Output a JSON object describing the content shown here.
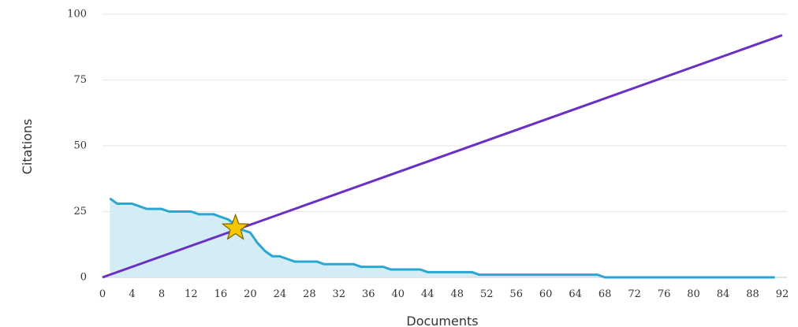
{
  "chart_data": {
    "type": "line",
    "xlabel": "Documents",
    "ylabel": "Citations",
    "xlim": [
      0,
      92
    ],
    "ylim": [
      0,
      100
    ],
    "x_ticks": [
      0,
      4,
      8,
      12,
      16,
      20,
      24,
      28,
      32,
      36,
      40,
      44,
      48,
      52,
      56,
      60,
      64,
      68,
      72,
      76,
      80,
      84,
      88,
      92
    ],
    "y_ticks": [
      0,
      25,
      50,
      75,
      100
    ],
    "grid": true,
    "legend": "none",
    "series": [
      {
        "kind": "area",
        "color": "#2aa7d1",
        "fill": "#d3ecf5",
        "points": [
          [
            1,
            30
          ],
          [
            2,
            28
          ],
          [
            3,
            28
          ],
          [
            4,
            28
          ],
          [
            5,
            27
          ],
          [
            6,
            26
          ],
          [
            7,
            26
          ],
          [
            8,
            26
          ],
          [
            9,
            25
          ],
          [
            10,
            25
          ],
          [
            11,
            25
          ],
          [
            12,
            25
          ],
          [
            13,
            24
          ],
          [
            14,
            24
          ],
          [
            15,
            24
          ],
          [
            16,
            23
          ],
          [
            17,
            22
          ],
          [
            18,
            20
          ],
          [
            19,
            18
          ],
          [
            20,
            17
          ],
          [
            21,
            13
          ],
          [
            22,
            10
          ],
          [
            23,
            8
          ],
          [
            24,
            8
          ],
          [
            25,
            7
          ],
          [
            26,
            6
          ],
          [
            27,
            6
          ],
          [
            28,
            6
          ],
          [
            29,
            6
          ],
          [
            30,
            5
          ],
          [
            31,
            5
          ],
          [
            32,
            5
          ],
          [
            33,
            5
          ],
          [
            34,
            5
          ],
          [
            35,
            4
          ],
          [
            36,
            4
          ],
          [
            37,
            4
          ],
          [
            38,
            4
          ],
          [
            39,
            3
          ],
          [
            40,
            3
          ],
          [
            41,
            3
          ],
          [
            42,
            3
          ],
          [
            43,
            3
          ],
          [
            44,
            2
          ],
          [
            45,
            2
          ],
          [
            46,
            2
          ],
          [
            47,
            2
          ],
          [
            48,
            2
          ],
          [
            49,
            2
          ],
          [
            50,
            2
          ],
          [
            51,
            1
          ],
          [
            52,
            1
          ],
          [
            53,
            1
          ],
          [
            54,
            1
          ],
          [
            55,
            1
          ],
          [
            56,
            1
          ],
          [
            57,
            1
          ],
          [
            58,
            1
          ],
          [
            59,
            1
          ],
          [
            60,
            1
          ],
          [
            61,
            1
          ],
          [
            62,
            1
          ],
          [
            63,
            1
          ],
          [
            64,
            1
          ],
          [
            65,
            1
          ],
          [
            66,
            1
          ],
          [
            67,
            1
          ],
          [
            68,
            0
          ],
          [
            69,
            0
          ],
          [
            70,
            0
          ],
          [
            72,
            0
          ],
          [
            76,
            0
          ],
          [
            80,
            0
          ],
          [
            84,
            0
          ],
          [
            88,
            0
          ],
          [
            91,
            0
          ]
        ]
      },
      {
        "kind": "line",
        "color": "#6a2fc4",
        "points": [
          [
            0,
            0
          ],
          [
            92,
            92
          ]
        ]
      }
    ],
    "marker": {
      "shape": "star",
      "x": 18,
      "y": 18.7,
      "color": "#f7c600",
      "stroke": "#7a6200"
    }
  }
}
